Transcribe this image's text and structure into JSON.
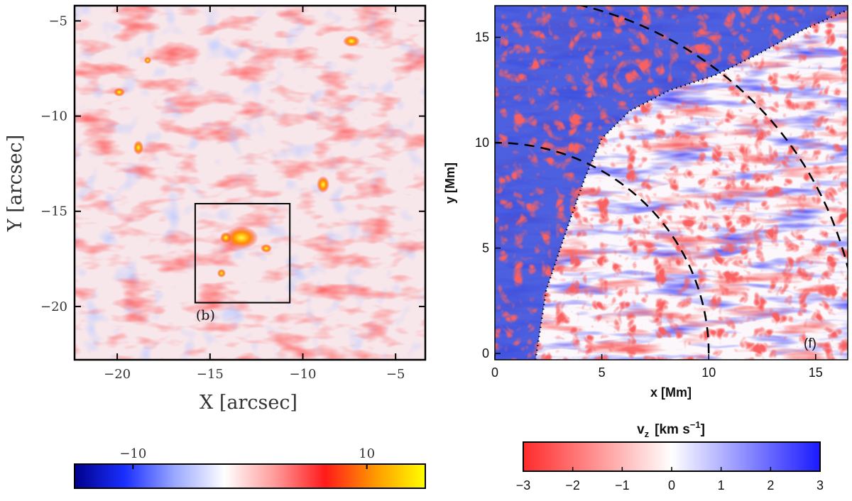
{
  "chart_data": [
    {
      "type": "heatmap",
      "panel_label": "(b)",
      "xlabel": "X [arcsec]",
      "ylabel": "Y [arcsec]",
      "xlim": [
        -22.3,
        -3.4
      ],
      "ylim": [
        -22.8,
        -4.2
      ],
      "x_ticks": [
        {
          "value": -20,
          "label": "−20"
        },
        {
          "value": -15,
          "label": "−15"
        },
        {
          "value": -10,
          "label": "−10"
        },
        {
          "value": -5,
          "label": "−5"
        }
      ],
      "y_ticks": [
        {
          "value": -5,
          "label": "−5"
        },
        {
          "value": -10,
          "label": "−10"
        },
        {
          "value": -15,
          "label": "−15"
        },
        {
          "value": -20,
          "label": "−20"
        }
      ],
      "highlight_box": {
        "x": [
          -15.8,
          -10.7
        ],
        "y": [
          -19.8,
          -14.6
        ]
      },
      "colorbar": {
        "range": [
          -15,
          15
        ],
        "ticks": [
          {
            "value": -10,
            "label": "−10"
          },
          {
            "value": 10,
            "label": "10"
          }
        ],
        "colors": [
          "#00008b",
          "#1a2fff",
          "#9aa8ff",
          "#ffffff",
          "#ff9a9a",
          "#ff1a1a",
          "#ff9900",
          "#ffff00"
        ]
      }
    },
    {
      "type": "heatmap",
      "panel_label": "(f)",
      "xlabel": "x [Mm]",
      "ylabel": "y [Mm]",
      "xlim": [
        0,
        16.5
      ],
      "ylim": [
        -0.3,
        16.5
      ],
      "x_ticks": [
        {
          "value": 0,
          "label": "0"
        },
        {
          "value": 5,
          "label": "5"
        },
        {
          "value": 10,
          "label": "10"
        },
        {
          "value": 15,
          "label": "15"
        }
      ],
      "y_ticks": [
        {
          "value": 0,
          "label": "0"
        },
        {
          "value": 5,
          "label": "5"
        },
        {
          "value": 10,
          "label": "10"
        },
        {
          "value": 15,
          "label": "15"
        }
      ],
      "dashed_arcs_radius_mm": [
        10,
        17
      ],
      "colorbar": {
        "title_symbol": "v",
        "title_sub": "z",
        "title_units": "[km s",
        "title_exp": "−1",
        "title_close": "]",
        "range": [
          -3,
          3
        ],
        "ticks": [
          {
            "value": -3,
            "label": "−3"
          },
          {
            "value": -2,
            "label": "−2"
          },
          {
            "value": -1,
            "label": "−1"
          },
          {
            "value": 0,
            "label": "0"
          },
          {
            "value": 1,
            "label": "1"
          },
          {
            "value": 2,
            "label": "2"
          },
          {
            "value": 3,
            "label": "3"
          }
        ],
        "colors": [
          "#ff2a2a",
          "#ffffff",
          "#1a1aff"
        ]
      }
    }
  ]
}
